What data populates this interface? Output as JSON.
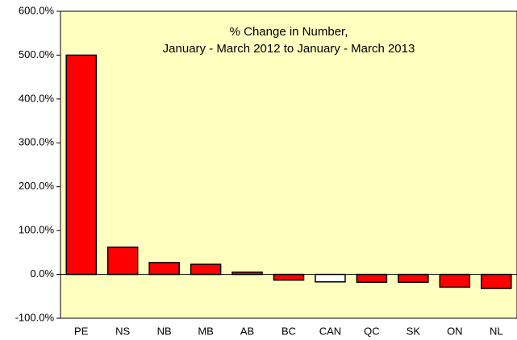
{
  "chart_data": {
    "type": "bar",
    "title": "% Change in Number,",
    "subtitle": "January - March 2012 to January - March 2013",
    "categories": [
      "PE",
      "NS",
      "NB",
      "MB",
      "AB",
      "BC",
      "CAN",
      "QC",
      "SK",
      "ON",
      "NL"
    ],
    "values": [
      500,
      62,
      27,
      23,
      5,
      -13,
      -17,
      -18,
      -18,
      -29,
      -32
    ],
    "colors": [
      "#ff0000",
      "#ff0000",
      "#ff0000",
      "#ff0000",
      "#ff0000",
      "#ff0000",
      "#ffffff",
      "#ff0000",
      "#ff0000",
      "#ff0000",
      "#ff0000"
    ],
    "ylim": [
      -100,
      600
    ],
    "yticks": [
      {
        "value": -100,
        "label": "-100.0%"
      },
      {
        "value": 0,
        "label": "0.0%"
      },
      {
        "value": 100,
        "label": "100.0%"
      },
      {
        "value": 200,
        "label": "200.0%"
      },
      {
        "value": 300,
        "label": "300.0%"
      },
      {
        "value": 400,
        "label": "400.0%"
      },
      {
        "value": 500,
        "label": "500.0%"
      },
      {
        "value": 600,
        "label": "600.0%"
      }
    ],
    "plot_background": "#ffffc0",
    "grid": false
  }
}
